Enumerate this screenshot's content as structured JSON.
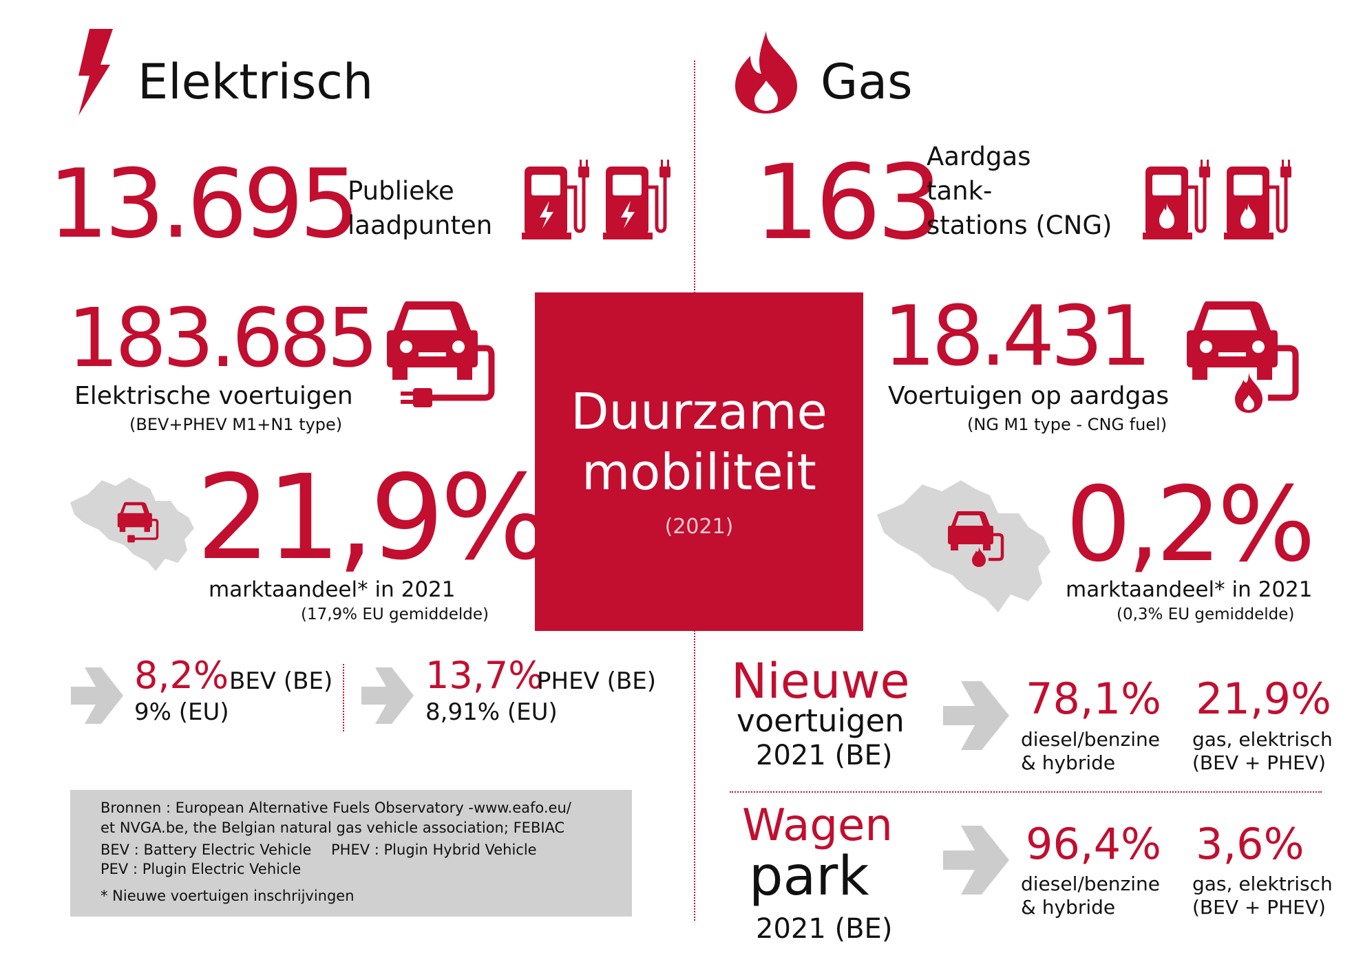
{
  "elektrisch": {
    "heading": "Elektrisch",
    "laadpunten_value": "13.695",
    "laadpunten_label_1": "Publieke",
    "laadpunten_label_2": "laadpunten",
    "vehicles_value": "183.685",
    "vehicles_label": "Elektrische voertuigen",
    "vehicles_sub": "(BEV+PHEV M1+N1 type)",
    "share_value": "21,9%",
    "share_label": "marktaandeel* in 2021",
    "share_sub": "(17,9% EU gemiddelde)",
    "bev_value": "8,2%",
    "bev_label": "BEV (BE)",
    "bev_eu": "9% (EU)",
    "phev_value": "13,7%",
    "phev_label": "PHEV (BE)",
    "phev_eu": "8,91% (EU)"
  },
  "gas": {
    "heading": "Gas",
    "stations_value": "163",
    "stations_label_1": "Aardgas",
    "stations_label_2": "tank-",
    "stations_label_3": "stations (CNG)",
    "vehicles_value": "18.431",
    "vehicles_label": "Voertuigen op aardgas",
    "vehicles_sub": "(NG M1 type - CNG fuel)",
    "share_value": "0,2%",
    "share_label": "marktaandeel* in 2021",
    "share_sub": "(0,3% EU gemiddelde)"
  },
  "center": {
    "title_1": "Duurzame",
    "title_2": "mobiliteit",
    "year": "(2021)"
  },
  "nieuwe": {
    "title_1": "Nieuwe",
    "title_2": "voertuigen",
    "title_3": "2021 (BE)",
    "val_1": "78,1%",
    "lbl_1a": "diesel/benzine",
    "lbl_1b": "& hybride",
    "val_2": "21,9%",
    "lbl_2a": "gas, elektrisch",
    "lbl_2b": "(BEV + PHEV)"
  },
  "wagenpark": {
    "title_1": "Wagen",
    "title_2": "park",
    "title_3": "2021 (BE)",
    "val_1": "96,4%",
    "lbl_1a": "diesel/benzine",
    "lbl_1b": "& hybride",
    "val_2": "3,6%",
    "lbl_2a": "gas, elektrisch",
    "lbl_2b": "(BEV + PHEV)"
  },
  "sources": {
    "line_1": "Bronnen : European Alternative Fuels Observatory -www.eafo.eu/",
    "line_2": "et NVGA.be, the Belgian natural gas vehicle association; FEBIAC",
    "line_3a": "BEV : Battery Electric Vehicle",
    "line_3b": "PHEV : Plugin Hybrid Vehicle",
    "line_4": "PEV : Plugin Electric Vehicle",
    "line_5": "* Nieuwe voertuigen inschrijvingen"
  },
  "colors": {
    "accent": "#c20e2f",
    "grey_box": "#d0d0d0",
    "map": "#d6d6d6",
    "arrow": "#cccccc"
  }
}
